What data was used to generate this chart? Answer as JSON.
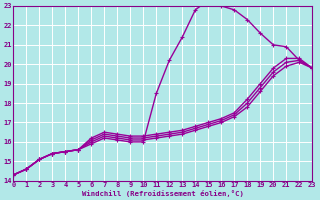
{
  "xlabel": "Windchill (Refroidissement éolien,°C)",
  "xlim": [
    0,
    23
  ],
  "ylim": [
    14,
    23
  ],
  "background_color": "#b2e8e8",
  "grid_color": "#ffffff",
  "line_color": "#990099",
  "lines": [
    [
      14.3,
      14.6,
      15.1,
      15.4,
      15.5,
      15.6,
      16.2,
      16.5,
      16.4,
      16.3,
      16.3,
      16.4,
      16.5,
      16.6,
      16.8,
      17.0,
      17.2,
      17.5,
      18.2,
      19.0,
      19.8,
      20.3,
      20.3,
      19.8
    ],
    [
      14.3,
      14.6,
      15.1,
      15.4,
      15.5,
      15.6,
      16.1,
      16.4,
      16.3,
      16.2,
      16.2,
      16.3,
      16.4,
      16.5,
      16.7,
      16.9,
      17.1,
      17.4,
      18.0,
      18.8,
      19.6,
      20.1,
      20.2,
      19.8
    ],
    [
      14.3,
      14.6,
      15.1,
      15.4,
      15.5,
      15.6,
      16.0,
      16.3,
      16.2,
      16.1,
      16.1,
      16.2,
      16.3,
      16.4,
      16.6,
      16.8,
      17.0,
      17.3,
      17.8,
      18.6,
      19.4,
      19.9,
      20.1,
      19.8
    ],
    [
      14.3,
      14.6,
      15.1,
      15.4,
      15.5,
      15.6,
      15.9,
      16.2,
      16.1,
      16.0,
      16.0,
      18.5,
      20.2,
      21.4,
      22.8,
      23.3,
      23.0,
      22.8,
      22.3,
      21.6,
      21.0,
      20.9,
      20.2,
      19.8
    ]
  ],
  "xticks": [
    0,
    1,
    2,
    3,
    4,
    5,
    6,
    7,
    8,
    9,
    10,
    11,
    12,
    13,
    14,
    15,
    16,
    17,
    18,
    19,
    20,
    21,
    22,
    23
  ],
  "yticks": [
    14,
    15,
    16,
    17,
    18,
    19,
    20,
    21,
    22,
    23
  ],
  "font_color": "#880088",
  "markersize": 2.5,
  "linewidth": 1.0
}
